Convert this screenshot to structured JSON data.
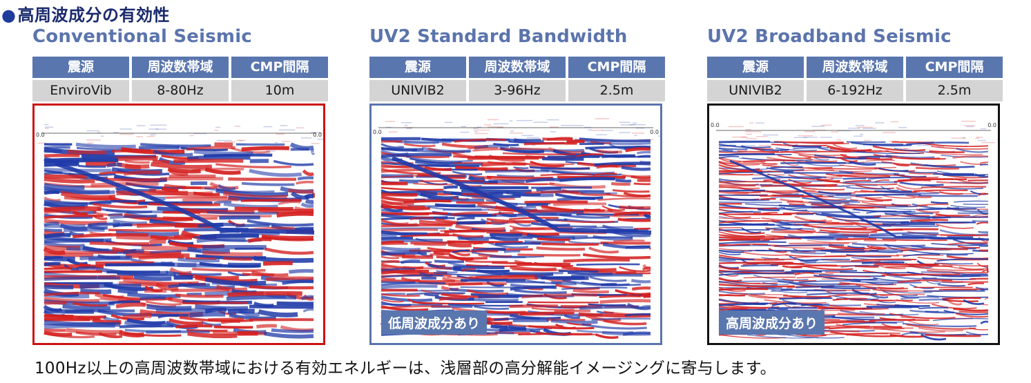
{
  "title": "高周波成分の有効性",
  "headers": [
    "震源",
    "周波数帯域",
    "CMP間隔"
  ],
  "panels": [
    {
      "title": "Conventional Seismic",
      "values": [
        "EnviroVib",
        "8-80Hz",
        "10m"
      ],
      "border_color": "#cc1111",
      "badge": null,
      "tick_label": "0.0"
    },
    {
      "title": "UV2 Standard Bandwidth",
      "values": [
        "UNIVIB2",
        "3-96Hz",
        "2.5m"
      ],
      "border_color": "#5b74ad",
      "badge": "低周波成分あり",
      "tick_label": "0.0"
    },
    {
      "title": "UV2 Broadband Seismic",
      "values": [
        "UNIVIB2",
        "6-192Hz",
        "2.5m"
      ],
      "border_color": "#111111",
      "badge": "高周波成分あり",
      "tick_label": "0.0"
    }
  ],
  "footer": "100Hz以上の高周波数帯域における有効エネルギーは、浅層部の高分解能イメージングに寄与します。",
  "colors": {
    "accent": "#5a76ae",
    "cell": "#d4d4d4",
    "red": "#d42020",
    "blue": "#1f3aa8"
  }
}
